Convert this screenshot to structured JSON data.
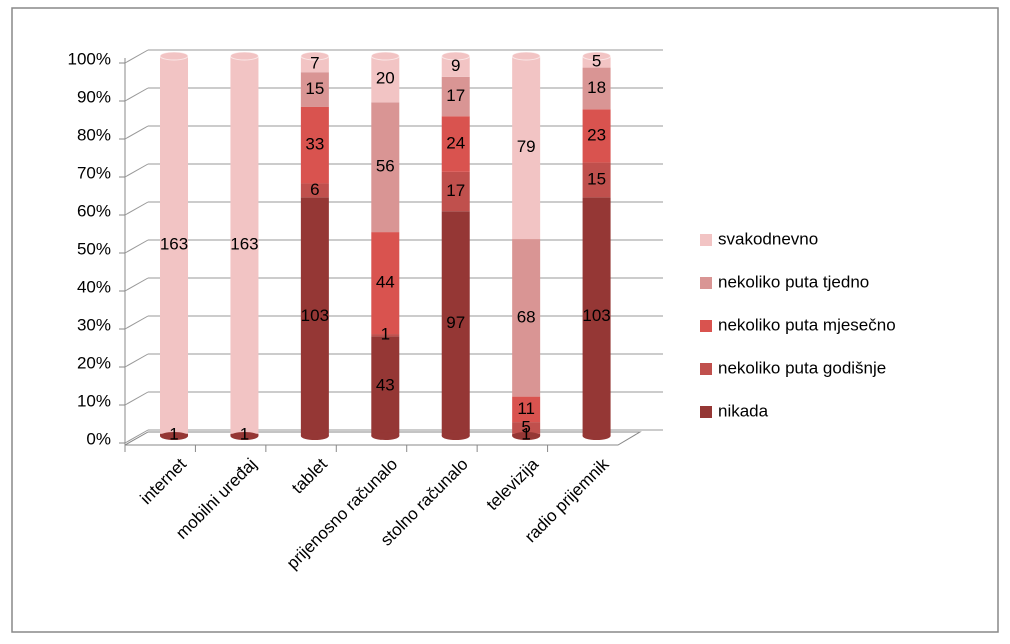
{
  "chart_data": {
    "type": "bar",
    "stacked": "percent",
    "categories": [
      "internet",
      "mobilni uređaj",
      "tablet",
      "prijenosno računalo",
      "stolno računalo",
      "televizija",
      "radio prijemnik"
    ],
    "series": [
      {
        "name": "nikada",
        "color": "#953735",
        "values": [
          1,
          1,
          103,
          43,
          97,
          1,
          103
        ]
      },
      {
        "name": "nekoliko puta godišnje",
        "color": "#c0504d",
        "values": [
          null,
          null,
          6,
          1,
          17,
          5,
          15
        ]
      },
      {
        "name": "nekoliko puta mjesečno",
        "color": "#d9534f",
        "values": [
          null,
          null,
          33,
          44,
          24,
          11,
          23
        ]
      },
      {
        "name": "nekoliko puta tjedno",
        "color": "#d99594",
        "values": [
          null,
          null,
          15,
          56,
          17,
          68,
          18
        ]
      },
      {
        "name": "svakodnevno",
        "color": "#f2c4c4",
        "values": [
          163,
          163,
          7,
          20,
          9,
          79,
          5
        ]
      }
    ],
    "ylim": [
      0,
      100
    ],
    "yticks": [
      {
        "value": 0,
        "label": "0%"
      },
      {
        "value": 10,
        "label": "10%"
      },
      {
        "value": 20,
        "label": "20%"
      },
      {
        "value": 30,
        "label": "30%"
      },
      {
        "value": 40,
        "label": "40%"
      },
      {
        "value": 50,
        "label": "50%"
      },
      {
        "value": 60,
        "label": "60%"
      },
      {
        "value": 70,
        "label": "70%"
      },
      {
        "value": 80,
        "label": "80%"
      },
      {
        "value": 90,
        "label": "90%"
      },
      {
        "value": 100,
        "label": "100%"
      }
    ],
    "grid": true,
    "legend": "right"
  }
}
